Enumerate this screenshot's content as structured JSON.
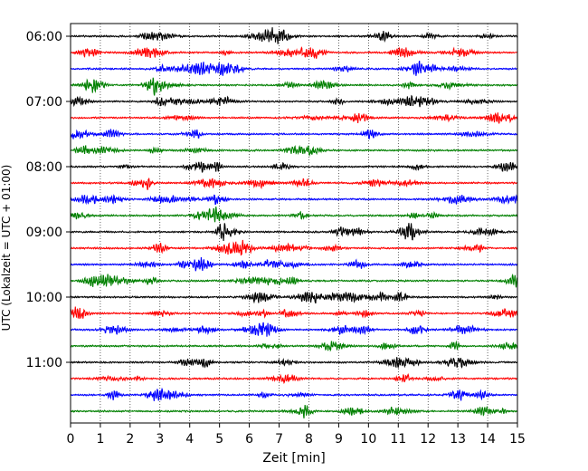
{
  "chart_data": {
    "type": "line",
    "xlabel": "Zeit  [min]",
    "ylabel": "UTC (Lokalzeit = UTC + 01:00)",
    "xlim": [
      0,
      15
    ],
    "x_ticks": [
      "0",
      "1",
      "2",
      "3",
      "4",
      "5",
      "6",
      "7",
      "8",
      "9",
      "10",
      "11",
      "12",
      "13",
      "14",
      "15"
    ],
    "y_ticks": [
      "06:00",
      "07:00",
      "08:00",
      "09:00",
      "10:00",
      "11:00"
    ],
    "grid": true,
    "trace_interval_minutes": 15,
    "trace_count": 24,
    "trace_colors": [
      "#000000",
      "#ff0000",
      "#0000ff",
      "#008000"
    ],
    "traces": [
      {
        "start": "06:00"
      },
      {
        "start": "06:15"
      },
      {
        "start": "06:30"
      },
      {
        "start": "06:45"
      },
      {
        "start": "07:00"
      },
      {
        "start": "07:15"
      },
      {
        "start": "07:30"
      },
      {
        "start": "07:45"
      },
      {
        "start": "08:00"
      },
      {
        "start": "08:15"
      },
      {
        "start": "08:30"
      },
      {
        "start": "08:45"
      },
      {
        "start": "09:00"
      },
      {
        "start": "09:15"
      },
      {
        "start": "09:30"
      },
      {
        "start": "09:45"
      },
      {
        "start": "10:00"
      },
      {
        "start": "10:15"
      },
      {
        "start": "10:30"
      },
      {
        "start": "10:45"
      },
      {
        "start": "11:00"
      },
      {
        "start": "11:15"
      },
      {
        "start": "11:30"
      },
      {
        "start": "11:45"
      }
    ]
  }
}
